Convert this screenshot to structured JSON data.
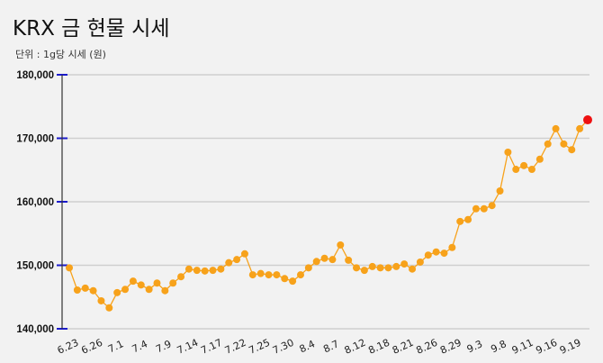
{
  "title": "KRX 금 현물 시세",
  "subtitle": "단위 : 1g당 시세 (원)",
  "chart_data": {
    "type": "line",
    "ylim": [
      140000,
      180000
    ],
    "yticks": [
      "140,000",
      "150,000",
      "160,000",
      "170,000",
      "180,000"
    ],
    "ytick_values": [
      140000,
      150000,
      160000,
      170000,
      180000
    ],
    "xtick_labels": [
      "6.23",
      "6.26",
      "7.1",
      "7.4",
      "7.9",
      "7.14",
      "7.17",
      "7.22",
      "7.25",
      "7.30",
      "8.4",
      "8.7",
      "8.12",
      "8.18",
      "8.21",
      "8.26",
      "8.29",
      "9.3",
      "9.8",
      "9.11",
      "9.16",
      "9.19"
    ],
    "xtick_every": 3,
    "grid": true,
    "line_color": "#f7a21b",
    "last_point_color": "#ee1111",
    "values": [
      149600,
      146100,
      146400,
      146000,
      144400,
      143300,
      145700,
      146200,
      147500,
      146900,
      146200,
      147200,
      146000,
      147200,
      148200,
      149400,
      149200,
      149100,
      149200,
      149400,
      150400,
      150900,
      151800,
      148500,
      148700,
      148500,
      148500,
      147900,
      147500,
      148500,
      149600,
      150600,
      151100,
      150900,
      153200,
      150800,
      149600,
      149200,
      149800,
      149600,
      149600,
      149800,
      150200,
      149400,
      150500,
      151600,
      152100,
      151900,
      152800,
      156900,
      157200,
      158900,
      158900,
      159400,
      161700,
      167800,
      165100,
      165700,
      165100,
      166700,
      169100,
      171500,
      169100,
      168200,
      171500,
      172900
    ]
  }
}
